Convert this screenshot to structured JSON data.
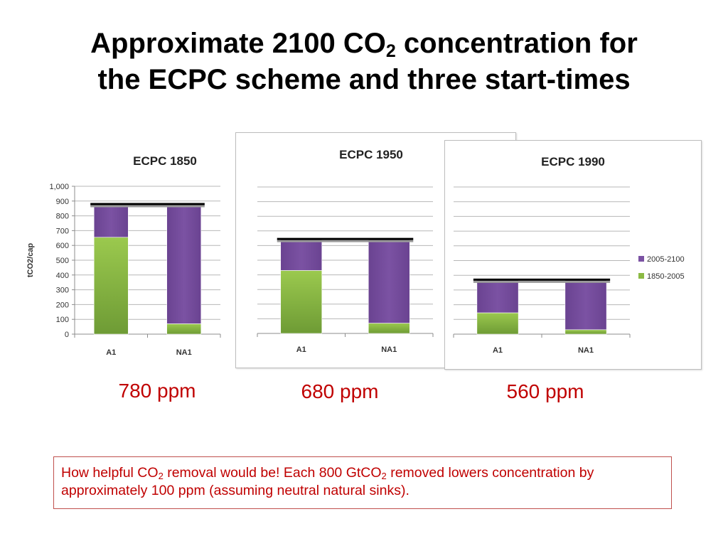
{
  "slide": {
    "title_line1_before": "Approximate 2100 CO",
    "title_line1_sub": "2",
    "title_line1_after": " concentration for",
    "title_line2": "the ECPC scheme and three start-times"
  },
  "colors": {
    "series_2005_2100": "#7b52a3",
    "series_1850_2005": "#8cba44",
    "reference_line": "#000000",
    "note_text": "#c00000",
    "note_border": "#c0504d"
  },
  "chart_data": [
    {
      "type": "bar",
      "stacked": true,
      "title": "ECPC 1850",
      "ylabel": "tCO2/cap",
      "ylim": [
        0,
        1000
      ],
      "yticks": [
        "0",
        "100",
        "200",
        "300",
        "400",
        "500",
        "600",
        "700",
        "800",
        "900",
        "1,000"
      ],
      "categories": [
        "A1",
        "NA1"
      ],
      "series": [
        {
          "name": "1850-2005",
          "values": [
            655,
            70
          ]
        },
        {
          "name": "2005-2100",
          "values": [
            225,
            810
          ]
        }
      ],
      "reference_line": 880,
      "grid": true
    },
    {
      "type": "bar",
      "stacked": true,
      "title": "ECPC 1950",
      "ylim": [
        0,
        1000
      ],
      "categories": [
        "A1",
        "NA1"
      ],
      "series": [
        {
          "name": "1850-2005",
          "values": [
            430,
            70
          ]
        },
        {
          "name": "2005-2100",
          "values": [
            215,
            575
          ]
        }
      ],
      "reference_line": 645,
      "grid": true
    },
    {
      "type": "bar",
      "stacked": true,
      "title": "ECPC 1990",
      "ylim": [
        0,
        1000
      ],
      "categories": [
        "A1",
        "NA1"
      ],
      "series": [
        {
          "name": "1850-2005",
          "values": [
            145,
            30
          ]
        },
        {
          "name": "2005-2100",
          "values": [
            225,
            340
          ]
        }
      ],
      "reference_line": 370,
      "legend": {
        "placement": "right",
        "entries": [
          "2005-2100",
          "1850-2005"
        ]
      },
      "grid": true
    }
  ],
  "ppm_labels": [
    "780 ppm",
    "680 ppm",
    "560 ppm"
  ],
  "note": {
    "part1": "How helpful CO",
    "sub1": "2",
    "part2": " removal would be! Each 800 GtCO",
    "sub2": "2",
    "part3": " removed lowers concentration by approximately 100 ppm (assuming neutral natural sinks)."
  }
}
